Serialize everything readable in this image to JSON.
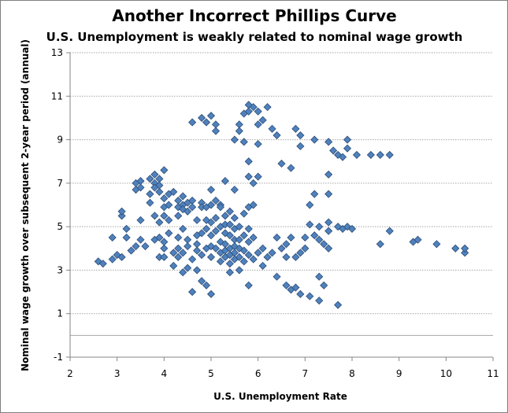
{
  "chart_data": {
    "type": "scatter",
    "title": "Another Incorrect Phillips Curve",
    "subtitle": "U.S. Unemployment is weakly related to nominal wage growth",
    "xlabel": "U.S. Unemployment Rate",
    "ylabel": "Nominal wage growth over subsequent 2-year period (annual)",
    "xlim": [
      2,
      11
    ],
    "ylim": [
      -1,
      13
    ],
    "xticks": [
      2,
      3,
      4,
      5,
      6,
      7,
      8,
      9,
      10,
      11
    ],
    "yticks": [
      -1,
      1,
      3,
      5,
      7,
      9,
      11,
      13
    ],
    "grid": "horizontal dotted",
    "legend": "none",
    "colors": {
      "marker_fill": "#4f81bd",
      "marker_stroke": "#2c4d75",
      "grid": "#a6a6a6",
      "axis": "#868686"
    },
    "points": [
      [
        2.6,
        3.4
      ],
      [
        2.7,
        3.3
      ],
      [
        2.9,
        3.5
      ],
      [
        2.9,
        4.5
      ],
      [
        3.0,
        3.7
      ],
      [
        3.1,
        3.6
      ],
      [
        3.1,
        5.5
      ],
      [
        3.1,
        5.7
      ],
      [
        3.2,
        4.9
      ],
      [
        3.2,
        4.5
      ],
      [
        3.3,
        3.9
      ],
      [
        3.4,
        4.1
      ],
      [
        3.4,
        6.7
      ],
      [
        3.4,
        7.0
      ],
      [
        3.5,
        6.8
      ],
      [
        3.5,
        7.1
      ],
      [
        3.5,
        5.3
      ],
      [
        3.5,
        4.4
      ],
      [
        3.6,
        4.1
      ],
      [
        3.7,
        6.1
      ],
      [
        3.7,
        6.5
      ],
      [
        3.7,
        7.2
      ],
      [
        3.8,
        7.0
      ],
      [
        3.8,
        7.4
      ],
      [
        3.8,
        6.8
      ],
      [
        3.8,
        5.5
      ],
      [
        3.8,
        4.4
      ],
      [
        3.9,
        7.2
      ],
      [
        3.9,
        6.9
      ],
      [
        3.9,
        6.6
      ],
      [
        3.9,
        5.2
      ],
      [
        3.9,
        4.5
      ],
      [
        3.9,
        3.6
      ],
      [
        4.0,
        7.6
      ],
      [
        4.0,
        6.3
      ],
      [
        4.0,
        5.9
      ],
      [
        4.0,
        5.5
      ],
      [
        4.0,
        4.3
      ],
      [
        4.0,
        4.0
      ],
      [
        4.0,
        3.6
      ],
      [
        4.1,
        6.5
      ],
      [
        4.1,
        6.0
      ],
      [
        4.1,
        5.3
      ],
      [
        4.1,
        4.7
      ],
      [
        4.2,
        6.6
      ],
      [
        4.2,
        3.8
      ],
      [
        4.2,
        3.2
      ],
      [
        4.3,
        6.2
      ],
      [
        4.3,
        5.9
      ],
      [
        4.3,
        5.5
      ],
      [
        4.3,
        4.5
      ],
      [
        4.3,
        4.0
      ],
      [
        4.3,
        3.6
      ],
      [
        4.4,
        6.4
      ],
      [
        4.4,
        6.0
      ],
      [
        4.4,
        5.8
      ],
      [
        4.4,
        4.9
      ],
      [
        4.4,
        3.8
      ],
      [
        4.4,
        2.9
      ],
      [
        4.5,
        6.1
      ],
      [
        4.5,
        5.7
      ],
      [
        4.5,
        4.4
      ],
      [
        4.5,
        4.1
      ],
      [
        4.5,
        3.1
      ],
      [
        4.6,
        9.8
      ],
      [
        4.6,
        6.2
      ],
      [
        4.6,
        5.9
      ],
      [
        4.6,
        3.5
      ],
      [
        4.6,
        2.0
      ],
      [
        4.7,
        5.3
      ],
      [
        4.7,
        4.6
      ],
      [
        4.7,
        4.2
      ],
      [
        4.7,
        3.9
      ],
      [
        4.7,
        3.0
      ],
      [
        4.8,
        10.0
      ],
      [
        4.8,
        6.1
      ],
      [
        4.8,
        5.9
      ],
      [
        4.8,
        4.7
      ],
      [
        4.8,
        3.7
      ],
      [
        4.8,
        2.5
      ],
      [
        4.9,
        9.8
      ],
      [
        4.9,
        5.9
      ],
      [
        4.9,
        5.3
      ],
      [
        4.9,
        4.9
      ],
      [
        4.9,
        4.0
      ],
      [
        4.9,
        2.3
      ],
      [
        5.0,
        10.1
      ],
      [
        5.0,
        6.7
      ],
      [
        5.0,
        6.0
      ],
      [
        5.0,
        5.2
      ],
      [
        5.0,
        4.6
      ],
      [
        5.0,
        4.1
      ],
      [
        5.0,
        3.6
      ],
      [
        5.0,
        1.9
      ],
      [
        5.1,
        9.7
      ],
      [
        5.1,
        9.4
      ],
      [
        5.1,
        6.2
      ],
      [
        5.1,
        5.4
      ],
      [
        5.1,
        4.8
      ],
      [
        5.1,
        4.0
      ],
      [
        5.2,
        6.0
      ],
      [
        5.2,
        5.9
      ],
      [
        5.2,
        5.0
      ],
      [
        5.2,
        4.3
      ],
      [
        5.2,
        3.8
      ],
      [
        5.2,
        3.4
      ],
      [
        5.3,
        7.1
      ],
      [
        5.3,
        5.5
      ],
      [
        5.3,
        5.1
      ],
      [
        5.3,
        4.7
      ],
      [
        5.3,
        4.2
      ],
      [
        5.3,
        3.9
      ],
      [
        5.3,
        3.6
      ],
      [
        5.4,
        5.7
      ],
      [
        5.4,
        5.1
      ],
      [
        5.4,
        4.6
      ],
      [
        5.4,
        4.0
      ],
      [
        5.4,
        3.7
      ],
      [
        5.4,
        3.3
      ],
      [
        5.4,
        2.9
      ],
      [
        5.5,
        9.0
      ],
      [
        5.5,
        6.7
      ],
      [
        5.5,
        5.4
      ],
      [
        5.5,
        4.9
      ],
      [
        5.5,
        4.4
      ],
      [
        5.5,
        4.1
      ],
      [
        5.5,
        3.8
      ],
      [
        5.5,
        3.5
      ],
      [
        5.6,
        9.7
      ],
      [
        5.6,
        9.4
      ],
      [
        5.6,
        5.0
      ],
      [
        5.6,
        4.4
      ],
      [
        5.6,
        4.0
      ],
      [
        5.6,
        3.6
      ],
      [
        5.6,
        3.0
      ],
      [
        5.7,
        10.2
      ],
      [
        5.7,
        8.9
      ],
      [
        5.7,
        5.6
      ],
      [
        5.7,
        4.6
      ],
      [
        5.7,
        3.9
      ],
      [
        5.7,
        3.4
      ],
      [
        5.8,
        10.6
      ],
      [
        5.8,
        10.3
      ],
      [
        5.8,
        8.0
      ],
      [
        5.8,
        7.3
      ],
      [
        5.8,
        5.9
      ],
      [
        5.8,
        4.9
      ],
      [
        5.8,
        4.3
      ],
      [
        5.8,
        3.7
      ],
      [
        5.8,
        2.3
      ],
      [
        5.9,
        10.5
      ],
      [
        5.9,
        7.0
      ],
      [
        5.9,
        6.0
      ],
      [
        5.9,
        4.5
      ],
      [
        5.9,
        3.5
      ],
      [
        6.0,
        10.3
      ],
      [
        6.0,
        9.7
      ],
      [
        6.0,
        8.8
      ],
      [
        6.0,
        7.3
      ],
      [
        6.0,
        3.8
      ],
      [
        6.1,
        9.9
      ],
      [
        6.1,
        4.0
      ],
      [
        6.1,
        3.2
      ],
      [
        6.2,
        10.5
      ],
      [
        6.2,
        3.6
      ],
      [
        6.3,
        9.5
      ],
      [
        6.3,
        3.8
      ],
      [
        6.4,
        9.2
      ],
      [
        6.4,
        4.5
      ],
      [
        6.4,
        2.7
      ],
      [
        6.5,
        7.9
      ],
      [
        6.5,
        4.0
      ],
      [
        6.6,
        4.2
      ],
      [
        6.6,
        3.6
      ],
      [
        6.6,
        2.3
      ],
      [
        6.7,
        7.7
      ],
      [
        6.7,
        4.5
      ],
      [
        6.7,
        2.1
      ],
      [
        6.8,
        9.5
      ],
      [
        6.8,
        3.6
      ],
      [
        6.8,
        2.2
      ],
      [
        6.9,
        9.2
      ],
      [
        6.9,
        8.7
      ],
      [
        6.9,
        3.8
      ],
      [
        6.9,
        1.9
      ],
      [
        7.0,
        4.5
      ],
      [
        7.0,
        4.0
      ],
      [
        7.1,
        6.0
      ],
      [
        7.1,
        5.1
      ],
      [
        7.1,
        1.8
      ],
      [
        7.2,
        9.0
      ],
      [
        7.2,
        6.5
      ],
      [
        7.2,
        4.6
      ],
      [
        7.3,
        5.0
      ],
      [
        7.3,
        4.4
      ],
      [
        7.3,
        2.7
      ],
      [
        7.3,
        1.6
      ],
      [
        7.4,
        4.2
      ],
      [
        7.4,
        2.3
      ],
      [
        7.5,
        8.9
      ],
      [
        7.5,
        7.4
      ],
      [
        7.5,
        6.5
      ],
      [
        7.5,
        5.2
      ],
      [
        7.5,
        4.8
      ],
      [
        7.5,
        4.0
      ],
      [
        7.6,
        8.5
      ],
      [
        7.7,
        8.3
      ],
      [
        7.7,
        5.0
      ],
      [
        7.7,
        1.4
      ],
      [
        7.8,
        8.2
      ],
      [
        7.8,
        4.9
      ],
      [
        7.9,
        9.0
      ],
      [
        7.9,
        8.6
      ],
      [
        7.9,
        5.0
      ],
      [
        8.0,
        4.9
      ],
      [
        8.1,
        8.3
      ],
      [
        8.4,
        8.3
      ],
      [
        8.6,
        8.3
      ],
      [
        8.6,
        4.2
      ],
      [
        8.8,
        8.3
      ],
      [
        8.8,
        4.8
      ],
      [
        9.3,
        4.3
      ],
      [
        9.4,
        4.4
      ],
      [
        9.8,
        4.2
      ],
      [
        10.2,
        4.0
      ],
      [
        10.4,
        3.8
      ],
      [
        10.4,
        4.0
      ]
    ]
  }
}
